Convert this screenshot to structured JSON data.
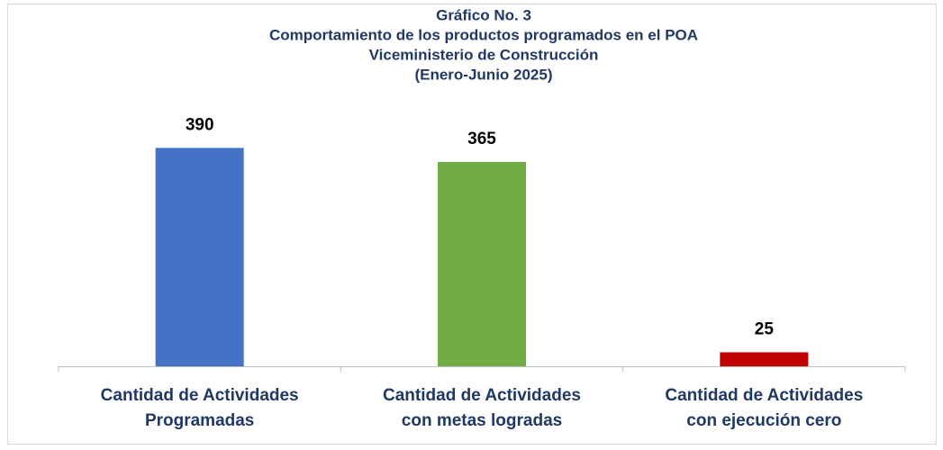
{
  "chart_data": {
    "type": "bar",
    "title": [
      "Gráfico No. 3",
      "Comportamiento de los productos programados en el POA",
      "Viceministerio de Construcción",
      "(Enero-Junio 2025)"
    ],
    "categories": [
      [
        "Cantidad de Actividades",
        "Programadas"
      ],
      [
        "Cantidad de Actividades",
        "con metas logradas"
      ],
      [
        "Cantidad de Actividades",
        "con ejecución cero"
      ]
    ],
    "values": [
      390,
      365,
      25
    ],
    "colors": [
      "#4472c4",
      "#70ad47",
      "#c00000"
    ],
    "ylim": [
      0,
      450
    ]
  }
}
